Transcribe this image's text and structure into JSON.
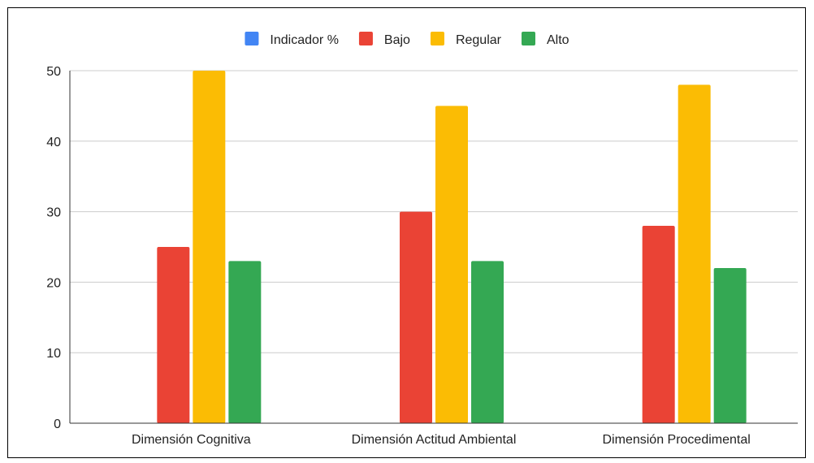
{
  "chart_data": {
    "type": "bar",
    "title": "",
    "xlabel": "",
    "ylabel": "",
    "categories": [
      "Dimensión Cognitiva",
      "Dimensión Actitud Ambiental",
      "Dimensión Procedimental"
    ],
    "series": [
      {
        "name": "Indicador %",
        "color": "#4285F4",
        "values": [
          0,
          0,
          0
        ]
      },
      {
        "name": "Bajo",
        "color": "#EA4335",
        "values": [
          25,
          30,
          28
        ]
      },
      {
        "name": "Regular",
        "color": "#FBBC04",
        "values": [
          50,
          45,
          48
        ]
      },
      {
        "name": "Alto",
        "color": "#34A853",
        "values": [
          23,
          23,
          22
        ]
      }
    ],
    "ylim": [
      0,
      50
    ],
    "yticks": [
      0,
      10,
      20,
      30,
      40,
      50
    ],
    "grid": true,
    "legend_position": "top"
  }
}
